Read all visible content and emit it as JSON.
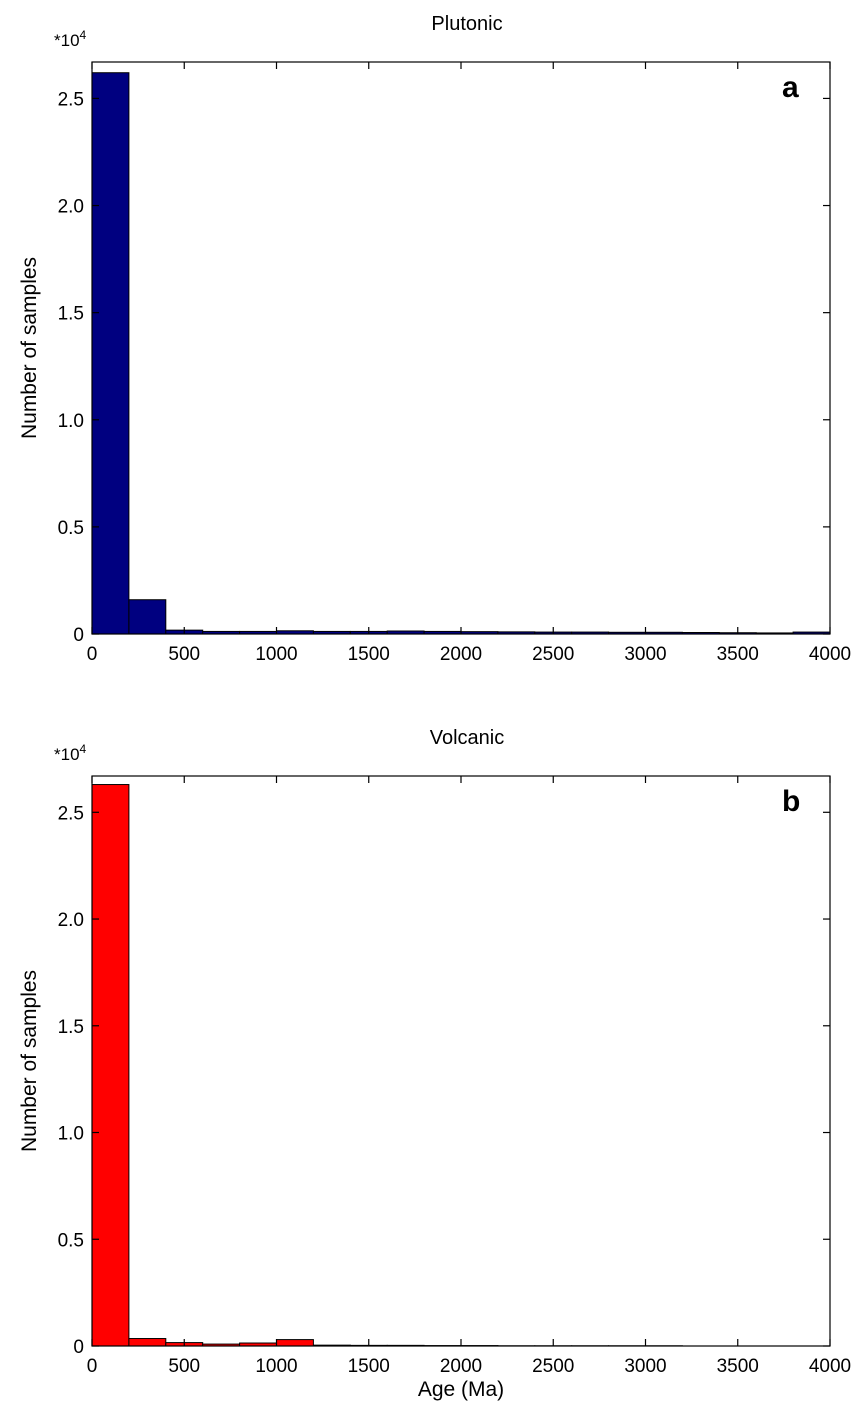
{
  "chart_data": [
    {
      "type": "bar",
      "title": "Plutonic",
      "panel_label": "a",
      "xlabel": "",
      "ylabel": "Number of samples",
      "y_multiplier": "*10",
      "y_multiplier_exp": "4",
      "xlim": [
        0,
        4000
      ],
      "ylim": [
        0,
        2.67
      ],
      "bin_width": 200,
      "x_ticks": [
        0,
        500,
        1000,
        1500,
        2000,
        2500,
        3000,
        3500,
        4000
      ],
      "y_ticks": [
        0,
        0.5,
        1.0,
        1.5,
        2.0,
        2.5
      ],
      "y_tick_labels": [
        "0",
        "0.5",
        "1.0",
        "1.5",
        "2.0",
        "2.5"
      ],
      "bin_starts": [
        0,
        200,
        400,
        600,
        800,
        1000,
        1200,
        1400,
        1600,
        1800,
        2000,
        2200,
        2400,
        2600,
        2800,
        3000,
        3200,
        3400,
        3600,
        3800
      ],
      "values": [
        2.62,
        0.16,
        0.018,
        0.012,
        0.012,
        0.015,
        0.012,
        0.012,
        0.014,
        0.012,
        0.011,
        0.01,
        0.009,
        0.009,
        0.008,
        0.008,
        0.007,
        0.006,
        0.005,
        0.009
      ],
      "bar_color": "#000080",
      "grid": false
    },
    {
      "type": "bar",
      "title": "Volcanic",
      "panel_label": "b",
      "xlabel": "Age (Ma)",
      "ylabel": "Number of samples",
      "y_multiplier": "*10",
      "y_multiplier_exp": "4",
      "xlim": [
        0,
        4000
      ],
      "ylim": [
        0,
        2.67
      ],
      "bin_width": 200,
      "x_ticks": [
        0,
        500,
        1000,
        1500,
        2000,
        2500,
        3000,
        3500,
        4000
      ],
      "y_ticks": [
        0,
        0.5,
        1.0,
        1.5,
        2.0,
        2.5
      ],
      "y_tick_labels": [
        "0",
        "0.5",
        "1.0",
        "1.5",
        "2.0",
        "2.5"
      ],
      "bin_starts": [
        0,
        200,
        400,
        600,
        800,
        1000,
        1200,
        1400,
        1600,
        1800,
        2000,
        2200,
        2400,
        2600,
        2800,
        3000,
        3200,
        3400,
        3600,
        3800
      ],
      "values": [
        2.63,
        0.035,
        0.016,
        0.009,
        0.014,
        0.03,
        0.004,
        0.003,
        0.003,
        0.002,
        0.002,
        0.001,
        0.001,
        0.001,
        0.001,
        0.001,
        0.0,
        0.0,
        0.0,
        0.0
      ],
      "bar_color": "#ff0000",
      "grid": false
    }
  ]
}
